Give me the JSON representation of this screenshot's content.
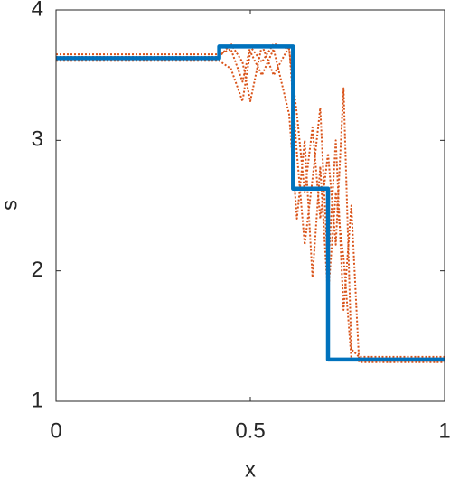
{
  "chart_data": {
    "type": "line",
    "x_label": "x",
    "y_label": "s",
    "xlim": [
      0,
      1
    ],
    "ylim": [
      1,
      4
    ],
    "xticks": [
      0,
      0.5,
      1
    ],
    "yticks": [
      1,
      2,
      3,
      4
    ],
    "series": [
      {
        "color": "#d95319",
        "style": "dotted",
        "x": [
          0,
          0.42,
          0.45,
          0.48,
          0.5,
          0.53,
          0.56,
          0.6,
          0.62,
          0.64,
          0.66,
          0.68,
          0.7,
          0.72,
          0.74,
          0.76,
          0.78,
          1
        ],
        "values": [
          3.66,
          3.66,
          3.7,
          3.45,
          3.72,
          3.6,
          3.74,
          3.7,
          3.2,
          2.6,
          3.1,
          2.4,
          2.9,
          2.2,
          3.4,
          1.4,
          1.34,
          1.34
        ]
      },
      {
        "color": "#d95319",
        "style": "dotted",
        "x": [
          0,
          0.42,
          0.45,
          0.48,
          0.5,
          0.53,
          0.56,
          0.6,
          0.62,
          0.64,
          0.66,
          0.68,
          0.7,
          0.72,
          0.74,
          0.76,
          0.78,
          1
        ],
        "values": [
          3.61,
          3.61,
          3.55,
          3.3,
          3.68,
          3.5,
          3.7,
          3.2,
          2.4,
          3.0,
          1.95,
          2.8,
          1.8,
          2.6,
          2.1,
          1.33,
          1.31,
          1.31
        ]
      },
      {
        "color": "#d95319",
        "style": "dotted",
        "x": [
          0,
          0.42,
          0.45,
          0.48,
          0.5,
          0.53,
          0.56,
          0.6,
          0.62,
          0.64,
          0.66,
          0.68,
          0.7,
          0.72,
          0.74,
          0.76,
          0.78,
          1
        ],
        "values": [
          3.64,
          3.64,
          3.74,
          3.6,
          3.3,
          3.73,
          3.5,
          3.72,
          2.9,
          2.2,
          2.7,
          3.25,
          2.0,
          3.0,
          1.7,
          2.5,
          1.3,
          1.3
        ]
      },
      {
        "color": "#0072bd",
        "style": "solid",
        "x": [
          0,
          0.42,
          0.42,
          0.61,
          0.61,
          0.7,
          0.7,
          1
        ],
        "values": [
          3.63,
          3.63,
          3.72,
          3.72,
          2.63,
          2.63,
          1.32,
          1.32
        ]
      }
    ]
  }
}
